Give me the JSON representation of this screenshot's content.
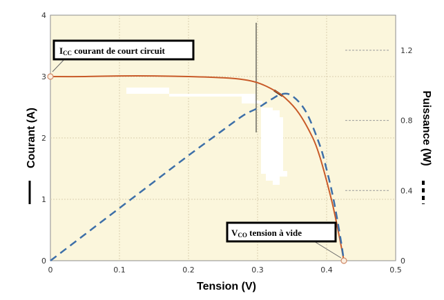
{
  "chart_data": {
    "type": "line",
    "x_axis": {
      "label": "Tension (V)",
      "range": [
        0,
        0.5
      ],
      "ticks": [
        "0",
        "0.1",
        "0.2",
        "0.3",
        "0.4",
        "0.5"
      ]
    },
    "y_axis_left": {
      "label": "Courant (A)",
      "range": [
        0,
        4
      ],
      "ticks": [
        "0",
        "1",
        "2",
        "3",
        "4"
      ]
    },
    "y_axis_right": {
      "label": "Puissance (W)",
      "range": [
        0,
        1.4
      ],
      "ticks": [
        "0",
        "0.4",
        "0.8",
        "1.2"
      ]
    },
    "grid": true,
    "series": [
      {
        "axis": "left",
        "style": "solid",
        "color": "#c85a28",
        "x": [
          0,
          0.05,
          0.1,
          0.15,
          0.2,
          0.25,
          0.28,
          0.3,
          0.32,
          0.34,
          0.36,
          0.38,
          0.39,
          0.4,
          0.41,
          0.42,
          0.425
        ],
        "y": [
          3.0,
          3.0,
          3.01,
          3.01,
          3.0,
          2.98,
          2.95,
          2.9,
          2.8,
          2.65,
          2.4,
          2.0,
          1.7,
          1.3,
          0.85,
          0.3,
          0
        ]
      },
      {
        "axis": "right",
        "style": "dashed",
        "color": "#3d6fa8",
        "x": [
          0,
          0.05,
          0.1,
          0.15,
          0.2,
          0.25,
          0.28,
          0.3,
          0.32,
          0.335,
          0.35,
          0.37,
          0.39,
          0.4,
          0.41,
          0.42,
          0.425
        ],
        "y": [
          0,
          0.15,
          0.3,
          0.45,
          0.6,
          0.745,
          0.83,
          0.87,
          0.92,
          0.95,
          0.94,
          0.85,
          0.66,
          0.52,
          0.35,
          0.13,
          0
        ]
      }
    ],
    "annotations": [
      {
        "main": "I",
        "sub": "CC",
        "rest": " courant de court circuit"
      },
      {
        "main": "V",
        "sub": "CO",
        "rest": " tension à vide"
      }
    ]
  },
  "colors": {
    "plot_background": "#fbf6dc",
    "grid": "#d8cfae",
    "current_curve": "#c85a28",
    "power_curve": "#3d6fa8",
    "marker_fill": "#fbeedf",
    "marker_stroke": "#d08a68"
  }
}
